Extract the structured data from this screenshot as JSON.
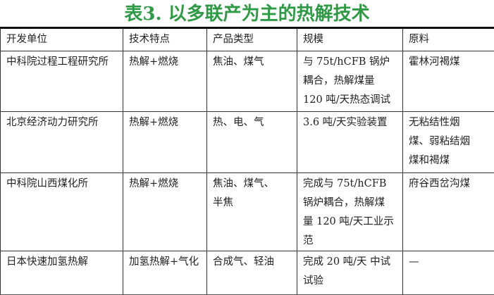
{
  "title": "表3. 以多联产为主的热解技术",
  "table": {
    "headers": [
      "开发单位",
      "技术特点",
      "产品类型",
      "规模",
      "原料"
    ],
    "rows": [
      [
        [
          "中科院过程工程研究所"
        ],
        [
          "热解+燃烧"
        ],
        [
          "焦油、煤气"
        ],
        [
          "与 75t/hCFB 锅炉",
          "耦合，热解煤量",
          "120 吨/天热态调试"
        ],
        [
          "霍林河褐煤"
        ]
      ],
      [
        [
          "北京经济动力研究所"
        ],
        [
          "热解+燃烧"
        ],
        [
          "热、电、气"
        ],
        [
          "3.6 吨/天实验装置"
        ],
        [
          "无粘结性烟",
          "煤、弱粘结烟",
          "煤和褐煤"
        ]
      ],
      [
        [
          "中科院山西煤化所"
        ],
        [
          "热解+燃烧"
        ],
        [
          "焦油、煤气、",
          "半焦"
        ],
        [
          "完成与 75t/hCFB",
          "锅炉耦合，热解煤",
          "量 120 吨/天工业示",
          "范"
        ],
        [
          "府谷西岔沟煤"
        ]
      ],
      [
        [
          "日本快速加氢热解"
        ],
        [
          "加氢热解+气化"
        ],
        [
          "合成气、轻油"
        ],
        [
          "完成 20 吨/天 中试",
          "试验"
        ],
        [
          "—"
        ]
      ]
    ]
  },
  "colors": {
    "title": "#2e9a45"
  }
}
